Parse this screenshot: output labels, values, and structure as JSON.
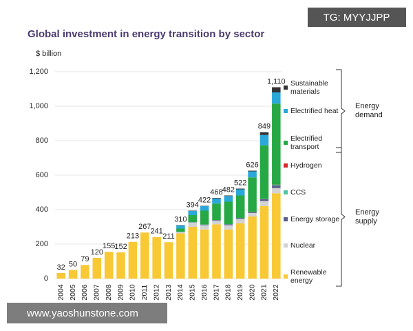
{
  "chart_data": {
    "type": "stacked-bar",
    "title": "Global investment in energy transition by sector",
    "y_label": "$ billion",
    "categories": [
      "2004",
      "2005",
      "2006",
      "2007",
      "2008",
      "2009",
      "2010",
      "2011",
      "2012",
      "2013",
      "2014",
      "2015",
      "2016",
      "2017",
      "2018",
      "2019",
      "2020",
      "2021",
      "2022"
    ],
    "series": [
      {
        "name": "Renewable energy",
        "color": "#f8c835",
        "values": [
          32,
          50,
          79,
          120,
          155,
          152,
          213,
          267,
          241,
          211,
          262,
          300,
          285,
          315,
          285,
          320,
          360,
          420,
          495
        ]
      },
      {
        "name": "Nuclear",
        "color": "#d3d3d3",
        "values": [
          0,
          0,
          0,
          0,
          0,
          0,
          0,
          0,
          0,
          0,
          8,
          25,
          25,
          20,
          25,
          25,
          20,
          30,
          30
        ]
      },
      {
        "name": "Energy storage",
        "color": "#5b5d8c",
        "values": [
          0,
          0,
          0,
          0,
          0,
          0,
          0,
          0,
          0,
          0,
          1,
          2,
          3,
          4,
          5,
          6,
          5,
          10,
          16
        ]
      },
      {
        "name": "CCS",
        "color": "#4fc4a1",
        "values": [
          0,
          0,
          0,
          0,
          0,
          0,
          0,
          0,
          0,
          0,
          1,
          1,
          1,
          1,
          1,
          1,
          1,
          2,
          3
        ]
      },
      {
        "name": "Hydrogen",
        "color": "#d62b2b",
        "values": [
          0,
          0,
          0,
          0,
          0,
          0,
          0,
          0,
          0,
          0,
          0,
          0,
          0,
          0,
          0,
          0,
          1,
          1,
          1
        ]
      },
      {
        "name": "Electrified transport",
        "color": "#26a844",
        "values": [
          0,
          0,
          0,
          0,
          0,
          0,
          0,
          0,
          0,
          0,
          18,
          40,
          80,
          95,
          130,
          130,
          200,
          310,
          470
        ]
      },
      {
        "name": "Electrified heat",
        "color": "#2aa8d9",
        "values": [
          0,
          0,
          0,
          0,
          0,
          0,
          0,
          0,
          0,
          0,
          18,
          24,
          26,
          30,
          33,
          36,
          35,
          60,
          65
        ]
      },
      {
        "name": "Sustainable materials",
        "color": "#333333",
        "values": [
          0,
          0,
          0,
          0,
          0,
          0,
          0,
          0,
          0,
          0,
          2,
          2,
          2,
          3,
          3,
          4,
          4,
          16,
          30
        ]
      }
    ],
    "totals": [
      32,
      50,
      79,
      120,
      155,
      152,
      213,
      267,
      241,
      211,
      310,
      394,
      422,
      468,
      482,
      522,
      626,
      849,
      1110
    ],
    "total_labels": [
      "32",
      "50",
      "79",
      "120",
      "155",
      "152",
      "213",
      "267",
      "241",
      "211",
      "310",
      "394",
      "422",
      "468",
      "482",
      "522",
      "626",
      "849",
      "1,110"
    ],
    "groups": [
      {
        "label": "Energy demand",
        "series": [
          5,
          6,
          7
        ]
      },
      {
        "label": "Energy supply",
        "series": [
          0,
          1,
          2,
          3,
          4
        ]
      }
    ],
    "ylim": [
      0,
      1200
    ],
    "yticks": [
      0,
      200,
      400,
      600,
      800,
      {
        "value": 1000,
        "label": "1,000"
      },
      {
        "value": 1200,
        "label": "1,200"
      }
    ],
    "grid": true
  },
  "watermarks": {
    "top": "TG: MYYJJPP",
    "bottom": "www.yaoshunstone.com"
  }
}
